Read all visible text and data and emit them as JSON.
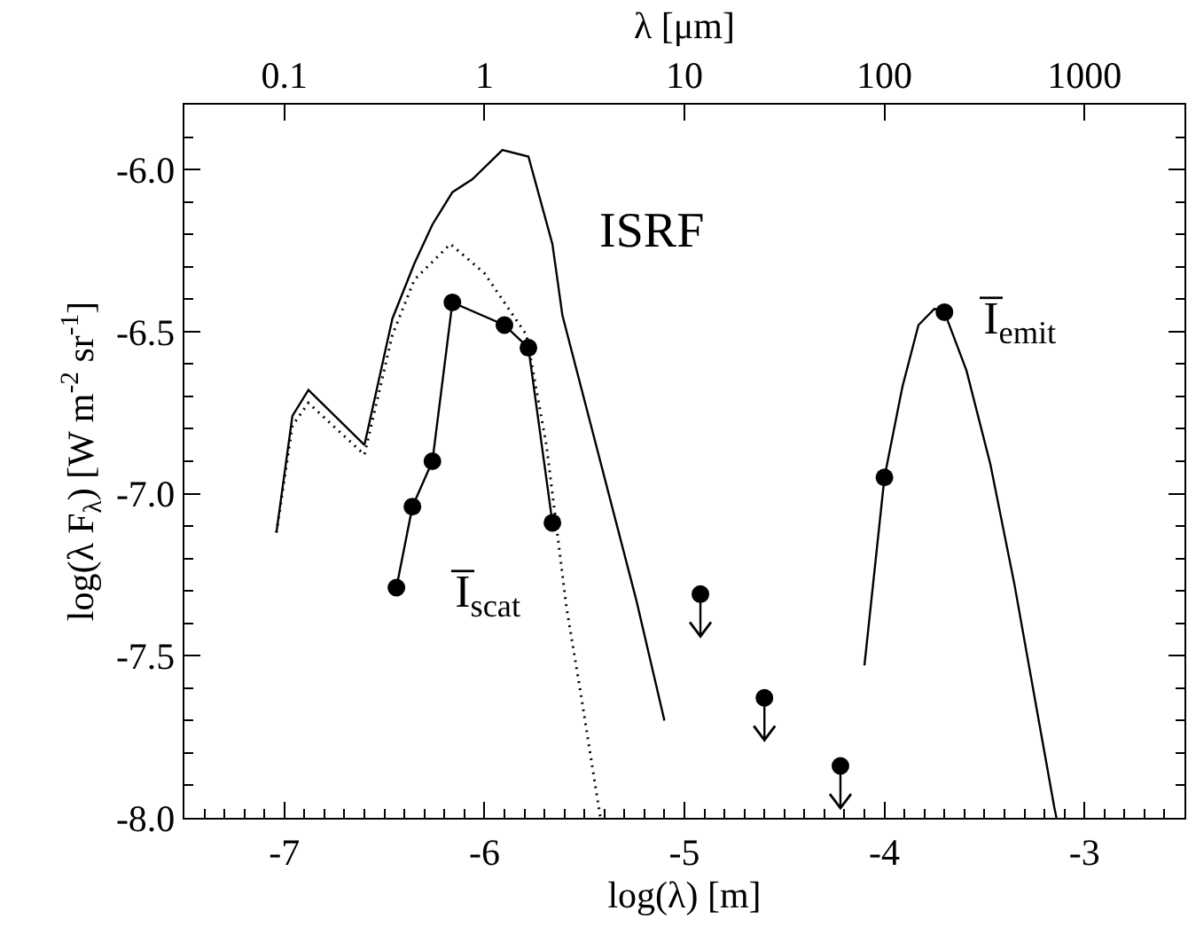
{
  "chart_data": {
    "type": "line",
    "xlabel": "log(λ) [m]",
    "ylabel": "log(λ F$_{λ}$) [W m$^{-2}$ sr$^{-1}$]",
    "x2label": "λ [μm]",
    "xlim": [
      -7.5,
      -2.5
    ],
    "xticks": [
      -7,
      -6,
      -5,
      -4,
      -3
    ],
    "x2lim": [
      0.0316,
      3162
    ],
    "x2ticks": [
      0.1,
      1,
      10,
      100,
      1000
    ],
    "ylim": [
      -8.0,
      -5.8
    ],
    "yticks": [
      {
        "value": -8,
        "label": "-8.0"
      },
      {
        "value": -7.5,
        "label": "-7.5"
      },
      {
        "value": -7,
        "label": "-7.0"
      },
      {
        "value": -6.5,
        "label": "-6.5"
      },
      {
        "value": -6,
        "label": "-6.0"
      }
    ],
    "grid": false,
    "legend": false,
    "log": "x2",
    "series": [
      {
        "name": "ISRF",
        "color": "#000000",
        "line_style": "solid",
        "marker": "none",
        "x": [
          -7.04,
          -6.96,
          -6.88,
          -6.6,
          -6.46,
          -6.35,
          -6.26,
          -6.16,
          -6.06,
          -5.91,
          -5.78,
          -5.66,
          -5.61,
          -5.24,
          -5.1
        ],
        "values": [
          -7.12,
          -6.76,
          -6.68,
          -6.85,
          -6.46,
          -6.29,
          -6.17,
          -6.07,
          -6.03,
          -5.94,
          -5.96,
          -6.23,
          -6.45,
          -7.33,
          -7.7
        ]
      },
      {
        "color": "#000000",
        "line_style": "dotted",
        "marker": "none",
        "x": [
          -7.04,
          -6.96,
          -6.88,
          -6.6,
          -6.46,
          -6.35,
          -6.17,
          -6.0,
          -5.79,
          -5.69,
          -5.59,
          -5.52,
          -5.42
        ],
        "values": [
          -7.12,
          -6.79,
          -6.72,
          -6.88,
          -6.51,
          -6.34,
          -6.23,
          -6.32,
          -6.51,
          -6.85,
          -7.35,
          -7.61,
          -8.0
        ]
      },
      {
        "name": "I̅$_{scat}$",
        "color": "#000000",
        "line_style": "solid",
        "marker": "circle",
        "x": [
          -6.44,
          -6.36,
          -6.26,
          -6.16,
          -5.9,
          -5.78,
          -5.66
        ],
        "values": [
          -7.29,
          -7.04,
          -6.9,
          -6.41,
          -6.48,
          -6.55,
          -7.09
        ]
      },
      {
        "type": "scatter",
        "color": "#000000",
        "marker": "circle",
        "x": [
          -4.92,
          -4.6,
          -4.22
        ],
        "values": [
          -7.31,
          -7.63,
          -7.84
        ],
        "errors": [
          [
            -7.44,
            -7.31
          ],
          [
            -7.76,
            -7.63
          ],
          [
            -7.97,
            -7.84
          ]
        ]
      },
      {
        "name": "I̅$_{emit}$",
        "color": "#000000",
        "line_style": "solid",
        "marker": "none",
        "x": [
          -4.1,
          -4.0,
          -3.91,
          -3.83,
          -3.75,
          -3.7,
          -3.59,
          -3.47,
          -3.35,
          -3.24,
          -3.15,
          -3.14
        ],
        "values": [
          -7.53,
          -6.95,
          -6.67,
          -6.48,
          -6.43,
          -6.44,
          -6.62,
          -6.91,
          -7.28,
          -7.66,
          -7.97,
          -8.0
        ]
      },
      {
        "type": "scatter",
        "color": "#000000",
        "marker": "circle",
        "x": [
          -4.0,
          -3.7
        ],
        "values": [
          -6.95,
          -6.44
        ]
      }
    ]
  }
}
